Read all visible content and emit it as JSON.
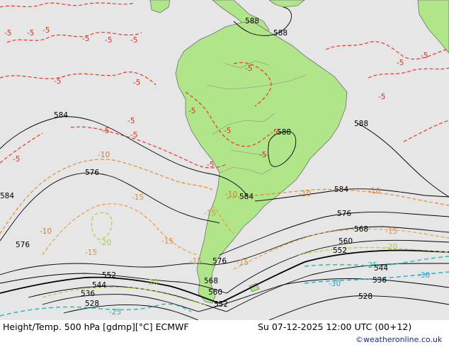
{
  "footer": {
    "title": "Height/Temp. 500 hPa [gdmp][°C] ECMWF",
    "valid_time": "Su 07-12-2025 12:00 UTC (00+12)",
    "credit": "©weatheronline.co.uk"
  },
  "colors": {
    "ocean": "#e6e6e6",
    "land": "#b0e58a",
    "coast": "#707070",
    "height_contour": "#000000",
    "temp_minus5": "#e83828",
    "temp_minus10": "#e88a28",
    "temp_minus15": "#e8a040",
    "temp_minus20": "#a8d840",
    "temp_minus25": "#28c0b0",
    "temp_minus30": "#20b0d0"
  },
  "height_labels": [
    "588",
    "588",
    "588",
    "588",
    "584",
    "584",
    "584",
    "584",
    "576",
    "576",
    "576",
    "576",
    "568",
    "568",
    "560",
    "560",
    "552",
    "552",
    "552",
    "544",
    "544",
    "536",
    "536",
    "528",
    "528"
  ],
  "temp_labels": {
    "minus5": [
      "-5",
      "-5",
      "-5",
      "-5",
      "-5",
      "-5",
      "-5",
      "-5",
      "-5",
      "-5",
      "-5",
      "-5",
      "-5",
      "-5",
      "-5",
      "-5",
      "-5",
      "-5",
      "-5",
      "-5",
      "-5"
    ],
    "minus10": [
      "-10",
      "-10",
      "-10",
      "-10",
      "-10"
    ],
    "minus15": [
      "-15",
      "-15",
      "-15",
      "-15",
      "-15",
      "-15",
      "-15"
    ],
    "minus20": [
      "-20",
      "-20",
      "-20"
    ],
    "minus25": [
      "-25",
      "-25"
    ],
    "minus30": [
      "-30",
      "-30"
    ]
  }
}
